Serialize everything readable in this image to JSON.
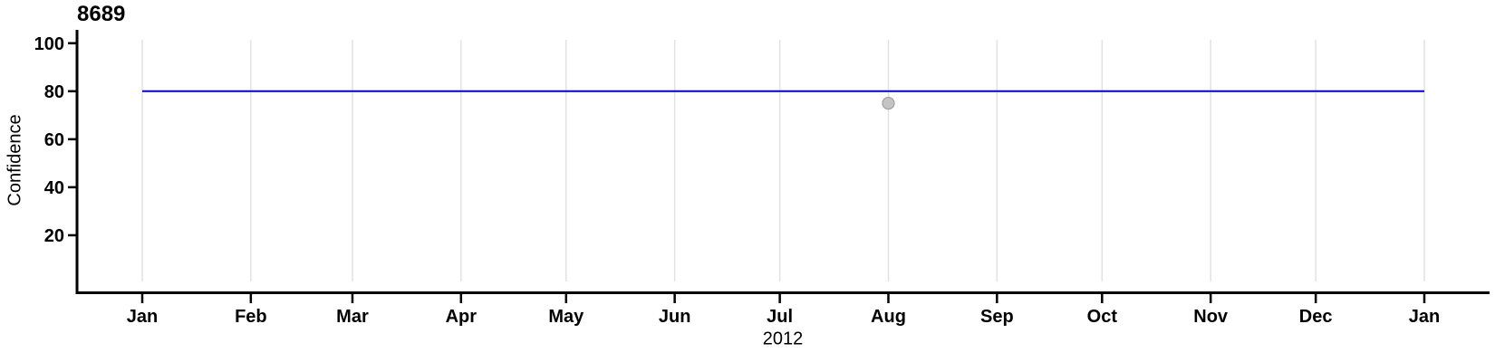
{
  "chart_data": {
    "type": "line",
    "title": "8689",
    "ylabel": "Confidence",
    "xlabel": "2012",
    "x_axis": {
      "tick_labels": [
        "Jan",
        "Feb",
        "Mar",
        "Apr",
        "May",
        "Jun",
        "Jul",
        "Aug",
        "Sep",
        "Oct",
        "Nov",
        "Dec",
        "Jan"
      ],
      "tick_positions_days": [
        0,
        31,
        60,
        91,
        121,
        152,
        182,
        213,
        244,
        274,
        305,
        335,
        366
      ],
      "range_days": [
        0,
        366
      ],
      "year_label": "2012"
    },
    "y_axis": {
      "ticks": [
        20,
        40,
        60,
        80,
        100
      ],
      "range": [
        0,
        101.5
      ]
    },
    "grid": {
      "vertical": true,
      "horizontal": false,
      "color": "#E2E2E2"
    },
    "series": [
      {
        "name": "confidence-threshold-line",
        "type": "hline",
        "value": 80,
        "span_days": [
          0,
          366
        ],
        "color": "#0000CC"
      },
      {
        "name": "confidence-observation",
        "type": "point",
        "x_day": 213,
        "value": 75,
        "fill": "#C4C4C4",
        "stroke": "#A0A0A0"
      }
    ],
    "axis_color": "#000000"
  }
}
